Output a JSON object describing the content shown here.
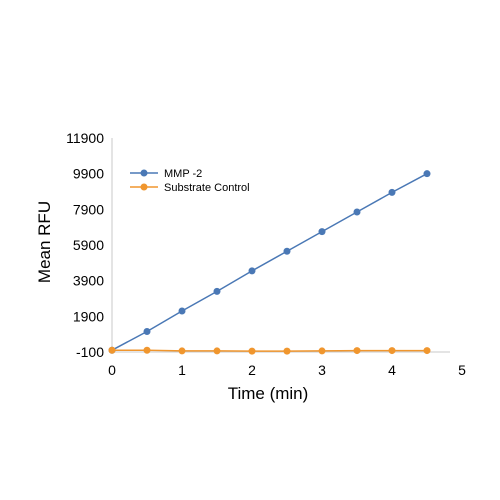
{
  "chart_data": {
    "type": "line",
    "title": "",
    "xlabel": "Time (min)",
    "ylabel": "Mean RFU",
    "xlim": [
      0,
      5
    ],
    "ylim": [
      -100,
      11900
    ],
    "x_ticks": [
      "0",
      "1",
      "2",
      "3",
      "4",
      "5"
    ],
    "y_ticks": [
      "-100",
      "1900",
      "3900",
      "5900",
      "7900",
      "9900",
      "11900"
    ],
    "grid": false,
    "legend_position": "top-left",
    "series": [
      {
        "name": "MMP -2",
        "color": "#4a78b5",
        "x": [
          0,
          0.5,
          1,
          1.5,
          2,
          2.5,
          3,
          3.5,
          4,
          4.5
        ],
        "y": [
          0,
          1050,
          2200,
          3300,
          4450,
          5550,
          6650,
          7750,
          8850,
          9900
        ]
      },
      {
        "name": "Substrate Control",
        "color": "#f0962e",
        "x": [
          0,
          0.5,
          1,
          1.5,
          2,
          2.5,
          3,
          3.5,
          4,
          4.5
        ],
        "y": [
          0,
          0,
          -40,
          -40,
          -50,
          -50,
          -40,
          -20,
          -20,
          -20
        ]
      }
    ]
  }
}
